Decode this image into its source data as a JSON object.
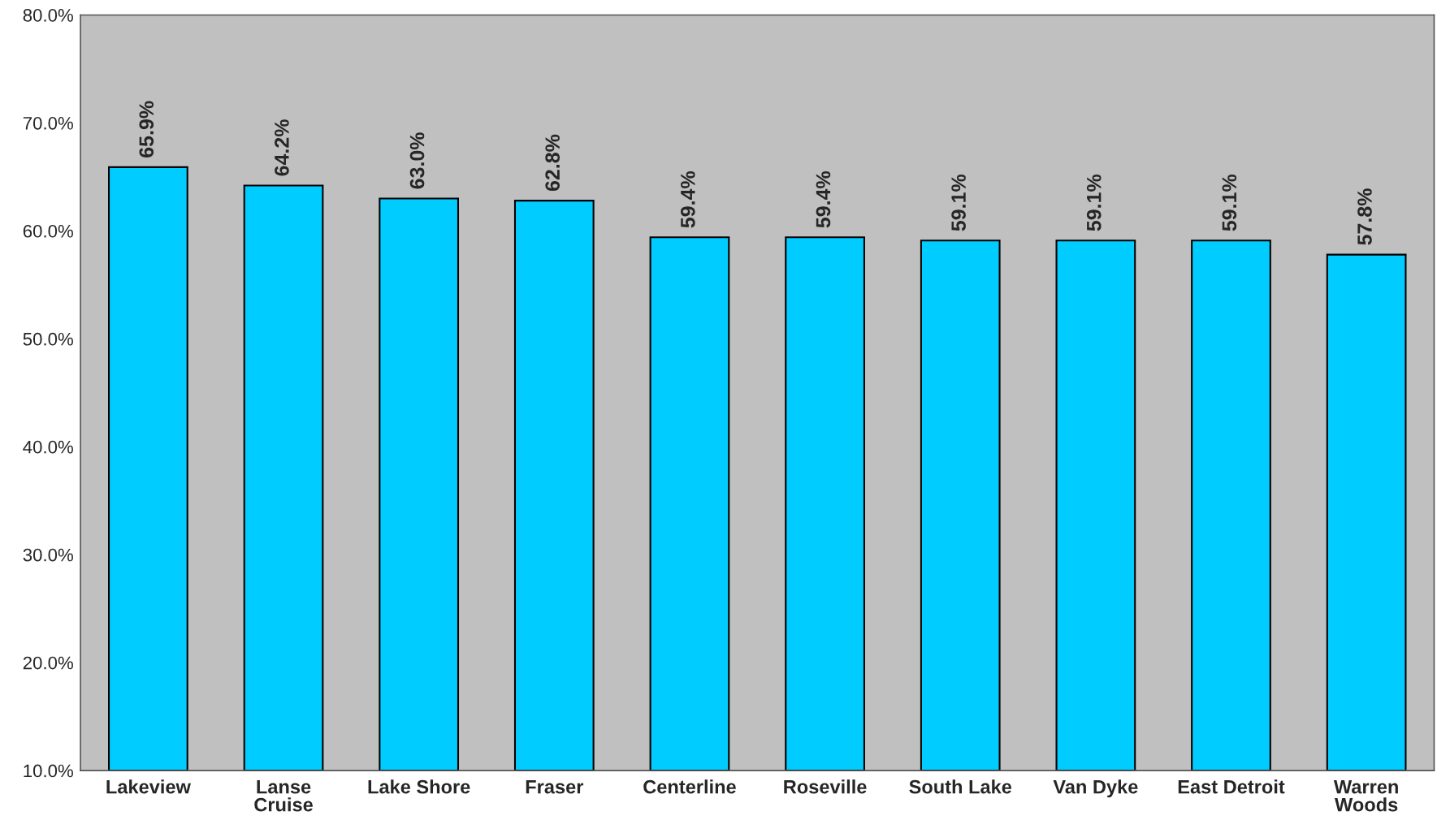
{
  "chart_data": {
    "type": "bar",
    "categories": [
      "Lakeview",
      "Lanse\nCruise",
      "Lake Shore",
      "Fraser",
      "Centerline",
      "Roseville",
      "South Lake",
      "Van Dyke",
      "East Detroit",
      "Warren\nWoods"
    ],
    "values": [
      65.9,
      64.2,
      63.0,
      62.8,
      59.4,
      59.4,
      59.1,
      59.1,
      59.1,
      57.8
    ],
    "value_labels": [
      "65.9%",
      "64.2%",
      "63.0%",
      "62.8%",
      "59.4%",
      "59.4%",
      "59.1%",
      "59.1%",
      "59.1%",
      "57.8%"
    ],
    "color": "#00ccff",
    "ylim": [
      10,
      80
    ],
    "yticks": [
      {
        "value": 10,
        "label": "10.0%"
      },
      {
        "value": 20,
        "label": "20.0%"
      },
      {
        "value": 30,
        "label": "30.0%"
      },
      {
        "value": 40,
        "label": "40.0%"
      },
      {
        "value": 50,
        "label": "50.0%"
      },
      {
        "value": 60,
        "label": "60.0%"
      },
      {
        "value": 70,
        "label": "70.0%"
      },
      {
        "value": 80,
        "label": "80.0%"
      }
    ],
    "grid": false,
    "legend": false
  }
}
